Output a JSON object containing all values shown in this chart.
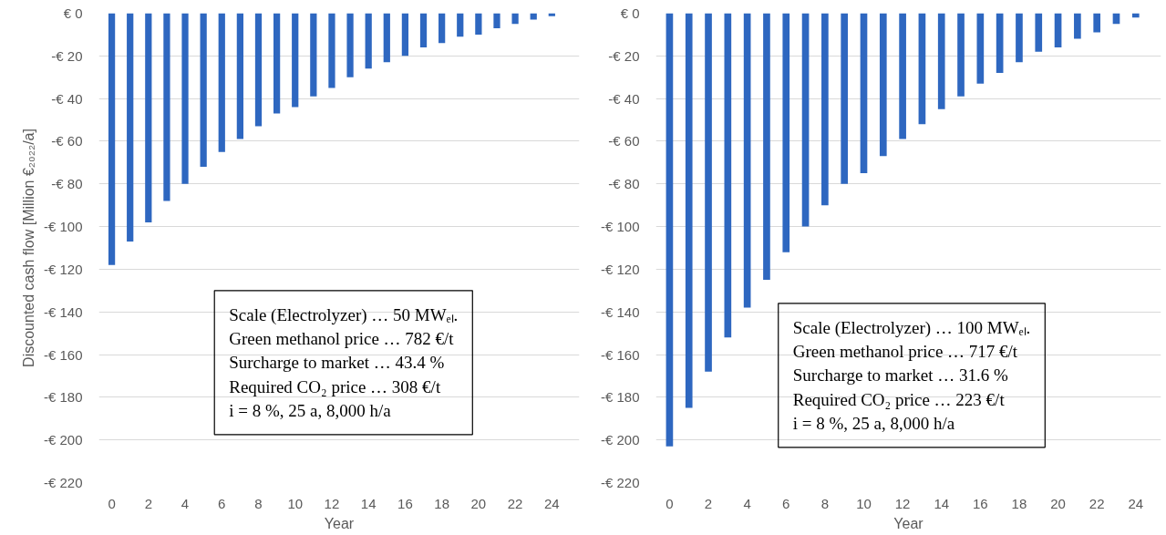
{
  "chart_data": [
    {
      "type": "bar",
      "xlabel": "Year",
      "ylabel": "Discounted cash flow [Million €₂₀₂₂/a]",
      "color": "#2e67c0",
      "x": [
        0,
        1,
        2,
        3,
        4,
        5,
        6,
        7,
        8,
        9,
        10,
        11,
        12,
        13,
        14,
        15,
        16,
        17,
        18,
        19,
        20,
        21,
        22,
        23,
        24
      ],
      "values": [
        -118,
        -107,
        -98,
        -88,
        -80,
        -72,
        -65,
        -59,
        -53,
        -47,
        -44,
        -39,
        -35,
        -30,
        -26,
        -23,
        -20,
        -16,
        -14,
        -11,
        -10,
        -7,
        -5,
        -3,
        -1.4
      ],
      "xlim": [
        -0.7,
        25.5
      ],
      "xticks": [
        0,
        2,
        4,
        6,
        8,
        10,
        12,
        14,
        16,
        18,
        20,
        22,
        24
      ],
      "ylim": [
        -220,
        0
      ],
      "yticks": [
        {
          "value": 0,
          "label": "€ 0"
        },
        {
          "value": -20,
          "label": "-€ 20"
        },
        {
          "value": -40,
          "label": "-€ 40"
        },
        {
          "value": -60,
          "label": "-€ 60"
        },
        {
          "value": -80,
          "label": "-€ 80"
        },
        {
          "value": -100,
          "label": "-€ 100"
        },
        {
          "value": -120,
          "label": "-€ 120"
        },
        {
          "value": -140,
          "label": "-€ 140"
        },
        {
          "value": -160,
          "label": "-€ 160"
        },
        {
          "value": -180,
          "label": "-€ 180"
        },
        {
          "value": -200,
          "label": "-€ 200"
        },
        {
          "value": -220,
          "label": "-€ 220"
        }
      ],
      "grid": "y",
      "annotations": [
        "Scale (Electrolyzer) … 50 MWₑₗ.",
        "Green methanol price … 782 €/t",
        "Surcharge to market … 43.4 %",
        "Required CO₂ price … 308 €/t",
        "i = 8 %, 25 a, 8,000 h/a"
      ]
    },
    {
      "type": "bar",
      "xlabel": "Year",
      "color": "#2e67c0",
      "x": [
        0,
        1,
        2,
        3,
        4,
        5,
        6,
        7,
        8,
        9,
        10,
        11,
        12,
        13,
        14,
        15,
        16,
        17,
        18,
        19,
        20,
        21,
        22,
        23,
        24
      ],
      "values": [
        -203,
        -185,
        -168,
        -152,
        -138,
        -125,
        -112,
        -100,
        -90,
        -80,
        -75,
        -67,
        -59,
        -52,
        -45,
        -39,
        -33,
        -28,
        -23,
        -18,
        -16,
        -12,
        -9,
        -5,
        -2
      ],
      "xlim": [
        -0.7,
        25.3
      ],
      "xticks": [
        0,
        2,
        4,
        6,
        8,
        10,
        12,
        14,
        16,
        18,
        20,
        22,
        24
      ],
      "ylim": [
        -220,
        0
      ],
      "yticks": [
        {
          "value": 0,
          "label": "€ 0"
        },
        {
          "value": -20,
          "label": "-€ 20"
        },
        {
          "value": -40,
          "label": "-€ 40"
        },
        {
          "value": -60,
          "label": "-€ 60"
        },
        {
          "value": -80,
          "label": "-€ 80"
        },
        {
          "value": -100,
          "label": "-€ 100"
        },
        {
          "value": -120,
          "label": "-€ 120"
        },
        {
          "value": -140,
          "label": "-€ 140"
        },
        {
          "value": -160,
          "label": "-€ 160"
        },
        {
          "value": -180,
          "label": "-€ 180"
        },
        {
          "value": -200,
          "label": "-€ 200"
        },
        {
          "value": -220,
          "label": "-€ 220"
        }
      ],
      "grid": "y",
      "annotations": [
        "Scale (Electrolyzer) … 100 MWₑₗ.",
        "Green methanol price … 717 €/t",
        "Surcharge to market … 31.6 %",
        "Required CO₂ price … 223 €/t",
        "i = 8 %, 25 a, 8,000 h/a"
      ]
    }
  ]
}
